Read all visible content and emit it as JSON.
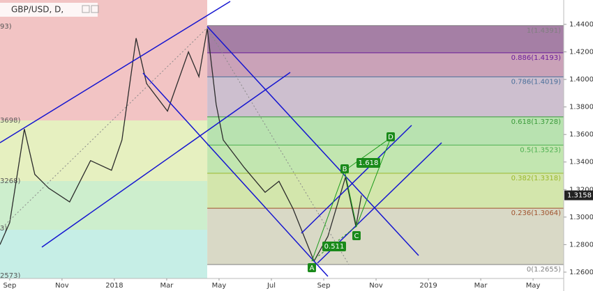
{
  "chart_data": {
    "type": "line",
    "title": "GBP/USD, D,",
    "x": [
      -0.37,
      0,
      0.56,
      0.96,
      1.49,
      2.29,
      3.09,
      3.89,
      4.29,
      4.83,
      5.23,
      6.03,
      6.83,
      7.23,
      7.55,
      7.89,
      8.16,
      8.96,
      9.76,
      10.29,
      10.83,
      11.63,
      12.16,
      12.83,
      13.23,
      13.44
    ],
    "series": [
      {
        "name": "GBP/USD",
        "color": "#2b2b2b",
        "values": [
          1.28,
          1.296,
          1.364,
          1.331,
          1.321,
          1.311,
          1.341,
          1.334,
          1.356,
          1.43,
          1.397,
          1.377,
          1.42,
          1.402,
          1.437,
          1.382,
          1.356,
          1.336,
          1.318,
          1.326,
          1.306,
          1.268,
          1.286,
          1.329,
          1.293,
          1.3158
        ]
      }
    ],
    "last_price": {
      "value": 1.3158,
      "label": "1.3158"
    },
    "xlim": [
      -0.37,
      21.17
    ],
    "ylim": [
      1.2554,
      1.4577
    ],
    "xticks": [
      {
        "value": 0,
        "label": "Sep"
      },
      {
        "value": 2,
        "label": "Nov"
      },
      {
        "value": 4,
        "label": "2018"
      },
      {
        "value": 6,
        "label": "Mar"
      },
      {
        "value": 8,
        "label": "May"
      },
      {
        "value": 10,
        "label": "Jul"
      },
      {
        "value": 12,
        "label": "Sep"
      },
      {
        "value": 14,
        "label": "Nov"
      },
      {
        "value": 16,
        "label": "2019"
      },
      {
        "value": 18,
        "label": "Mar"
      },
      {
        "value": 20,
        "label": "May"
      }
    ],
    "yticks": [
      {
        "value": 1.26,
        "label": "1.2600"
      },
      {
        "value": 1.28,
        "label": "1.2800"
      },
      {
        "value": 1.3,
        "label": "1.3000"
      },
      {
        "value": 1.32,
        "label": "1.3200"
      },
      {
        "value": 1.34,
        "label": "1.3400"
      },
      {
        "value": 1.36,
        "label": "1.3600"
      },
      {
        "value": 1.38,
        "label": "1.3800"
      },
      {
        "value": 1.4,
        "label": "1.4000"
      },
      {
        "value": 1.42,
        "label": "1.4200"
      },
      {
        "value": 1.44,
        "label": "1.4400"
      }
    ],
    "fib_start_x": 7.55,
    "fib_levels": [
      {
        "label": "1(1.4391)",
        "value": 1.4391,
        "color": "#7f7f7f",
        "fill": "#a57fa5"
      },
      {
        "label": "0.886(1.4193)",
        "value": 1.4193,
        "color": "#6a1b9a",
        "fill": "#caa2b8"
      },
      {
        "label": "0.786(1.4019)",
        "value": 1.4019,
        "color": "#4a6f9a",
        "fill": "#cdbfcf"
      },
      {
        "label": "0.618(1.3728)",
        "value": 1.3728,
        "color": "#3a9a3a",
        "fill": "#b8e2b0"
      },
      {
        "label": "0.5(1.3523)",
        "value": 1.3523,
        "color": "#4caf50",
        "fill": "#c2e6b0"
      },
      {
        "label": "0.382(1.3318)",
        "value": 1.3318,
        "color": "#9ab82c",
        "fill": "#d3e6ac"
      },
      {
        "label": "0.236(1.3064)",
        "value": 1.3064,
        "color": "#a0522d",
        "fill": "#d9d9c6"
      },
      {
        "label": "0(1.2655)",
        "value": 1.2655,
        "color": "#7f7f7f"
      }
    ],
    "left_fib_labels": [
      "93)",
      "3698)",
      "3268)",
      "3)",
      "2573)"
    ],
    "pattern_labels": [
      "A",
      "B",
      "C",
      "D"
    ],
    "ratio_labels": [
      "1.618",
      "0.511"
    ]
  }
}
